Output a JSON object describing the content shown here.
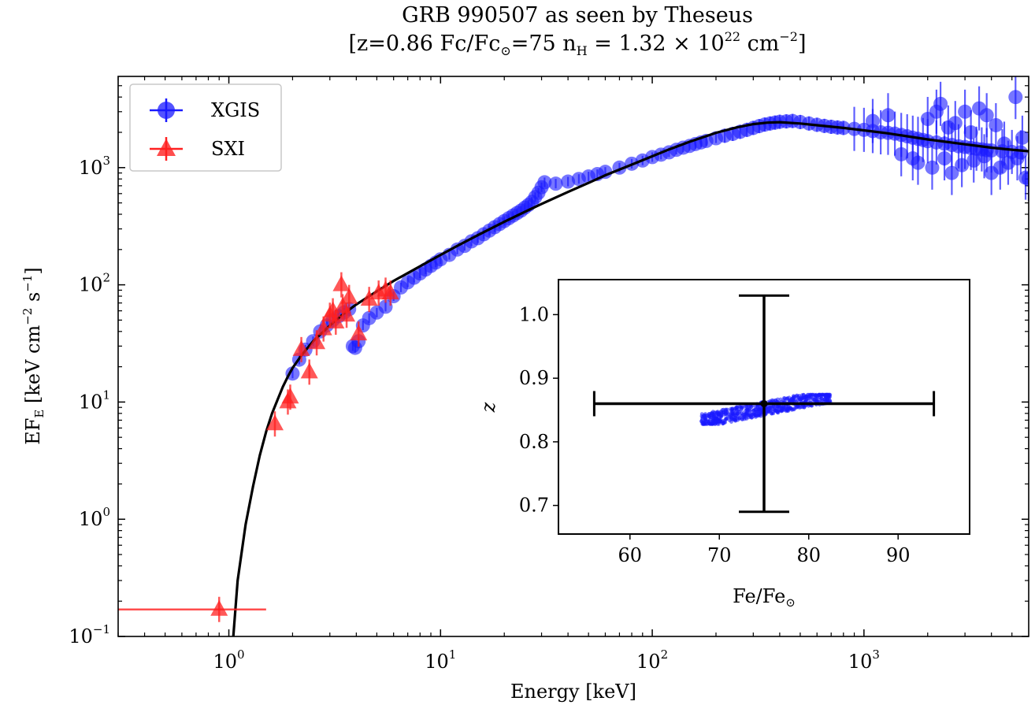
{
  "chart_data": {
    "type": "scatter",
    "title": "GRB 990507 as seen by Theseus",
    "subtitle": "[z=0.86 Fc/Fc⊙=75 nH = 1.32 × 1022 cm−2]",
    "xlabel": "Energy [keV]",
    "ylabel": "EFE [keV cm−2 s−1]",
    "xscale": "log",
    "yscale": "log",
    "xlim": [
      0.3,
      6000
    ],
    "ylim": [
      0.1,
      6000
    ],
    "x_ticks": [
      {
        "value": 1,
        "label": "10",
        "exp": "0"
      },
      {
        "value": 10,
        "label": "10",
        "exp": "1"
      },
      {
        "value": 100,
        "label": "10",
        "exp": "2"
      },
      {
        "value": 1000,
        "label": "10",
        "exp": "3"
      }
    ],
    "y_ticks": [
      {
        "value": 0.1,
        "label": "10",
        "exp": "−1"
      },
      {
        "value": 1,
        "label": "10",
        "exp": "0"
      },
      {
        "value": 10,
        "label": "10",
        "exp": "1"
      },
      {
        "value": 100,
        "label": "10",
        "exp": "2"
      },
      {
        "value": 1000,
        "label": "10",
        "exp": "3"
      }
    ],
    "legend": {
      "position": "top-left",
      "entries": [
        {
          "name": "XGIS",
          "color": "#1a1aff",
          "marker": "circle"
        },
        {
          "name": "SXI",
          "color": "#ff2020",
          "marker": "triangle"
        }
      ]
    },
    "series": [
      {
        "name": "XGIS",
        "color": "#1a1aff",
        "marker": "circle",
        "points": [
          [
            2.0,
            17.5
          ],
          [
            2.15,
            23
          ],
          [
            2.3,
            28
          ],
          [
            2.5,
            33
          ],
          [
            2.7,
            40
          ],
          [
            2.9,
            45
          ],
          [
            3.1,
            50
          ],
          [
            3.3,
            54
          ],
          [
            3.5,
            58
          ],
          [
            3.7,
            62
          ],
          [
            3.85,
            30
          ],
          [
            3.95,
            29
          ],
          [
            4.1,
            33
          ],
          [
            4.3,
            45
          ],
          [
            4.6,
            52
          ],
          [
            5.0,
            58
          ],
          [
            5.5,
            65
          ],
          [
            6.0,
            80
          ],
          [
            6.5,
            95
          ],
          [
            7,
            105
          ],
          [
            7.5,
            115
          ],
          [
            8,
            125
          ],
          [
            8.5,
            135
          ],
          [
            9,
            145
          ],
          [
            9.5,
            155
          ],
          [
            10,
            165
          ],
          [
            11,
            180
          ],
          [
            12,
            200
          ],
          [
            13,
            215
          ],
          [
            14,
            235
          ],
          [
            15,
            250
          ],
          [
            16,
            270
          ],
          [
            17,
            290
          ],
          [
            18,
            310
          ],
          [
            19,
            330
          ],
          [
            20,
            350
          ],
          [
            21,
            370
          ],
          [
            22,
            390
          ],
          [
            23,
            410
          ],
          [
            24,
            430
          ],
          [
            25,
            455
          ],
          [
            26,
            480
          ],
          [
            27,
            510
          ],
          [
            28,
            560
          ],
          [
            29,
            610
          ],
          [
            30,
            680
          ],
          [
            31,
            750
          ],
          [
            35,
            730
          ],
          [
            40,
            760
          ],
          [
            45,
            800
          ],
          [
            50,
            840
          ],
          [
            55,
            880
          ],
          [
            60,
            920
          ],
          [
            70,
            1000
          ],
          [
            80,
            1080
          ],
          [
            90,
            1150
          ],
          [
            100,
            1230
          ],
          [
            110,
            1290
          ],
          [
            120,
            1350
          ],
          [
            130,
            1420
          ],
          [
            140,
            1480
          ],
          [
            150,
            1530
          ],
          [
            160,
            1590
          ],
          [
            170,
            1640
          ],
          [
            180,
            1690
          ],
          [
            200,
            1780
          ],
          [
            220,
            1870
          ],
          [
            240,
            1940
          ],
          [
            260,
            2020
          ],
          [
            280,
            2100
          ],
          [
            300,
            2180
          ],
          [
            320,
            2260
          ],
          [
            340,
            2330
          ],
          [
            360,
            2380
          ],
          [
            380,
            2420
          ],
          [
            400,
            2460
          ],
          [
            430,
            2480
          ],
          [
            460,
            2500
          ],
          [
            500,
            2450
          ],
          [
            550,
            2380
          ],
          [
            600,
            2320
          ],
          [
            650,
            2270
          ],
          [
            700,
            2230
          ],
          [
            750,
            2200
          ],
          [
            800,
            2180
          ],
          [
            900,
            2140
          ],
          [
            1000,
            2100
          ],
          [
            1100,
            2050
          ],
          [
            1200,
            2000
          ],
          [
            1300,
            1980
          ],
          [
            1400,
            1950
          ],
          [
            1500,
            1900
          ],
          [
            1600,
            1850
          ],
          [
            1700,
            1800
          ],
          [
            1800,
            1760
          ],
          [
            1900,
            1720
          ],
          [
            2000,
            1680
          ],
          [
            2200,
            1640
          ],
          [
            2400,
            1600
          ],
          [
            2600,
            1560
          ],
          [
            2800,
            1520
          ],
          [
            3000,
            1500
          ],
          [
            3200,
            1470
          ],
          [
            3400,
            1450
          ],
          [
            3600,
            1430
          ],
          [
            3800,
            1410
          ],
          [
            4000,
            1400
          ],
          [
            4500,
            1380
          ],
          [
            5000,
            1360
          ],
          [
            5500,
            1350
          ],
          [
            1100,
            2500
          ],
          [
            1300,
            2800
          ],
          [
            1500,
            1300
          ],
          [
            1700,
            1200
          ],
          [
            2000,
            2600
          ],
          [
            2200,
            3000
          ],
          [
            2300,
            3500
          ],
          [
            2500,
            2200
          ],
          [
            2700,
            2400
          ],
          [
            3000,
            3000
          ],
          [
            3200,
            2000
          ],
          [
            3500,
            3200
          ],
          [
            3800,
            2800
          ],
          [
            4200,
            2300
          ],
          [
            4600,
            1600
          ],
          [
            5200,
            4000
          ],
          [
            5600,
            1800
          ],
          [
            5800,
            820
          ],
          [
            6000,
            800
          ],
          [
            1800,
            1100
          ],
          [
            2100,
            1000
          ],
          [
            2400,
            1200
          ],
          [
            2600,
            900
          ],
          [
            2900,
            1050
          ],
          [
            3300,
            1150
          ],
          [
            3700,
            1250
          ],
          [
            4000,
            900
          ],
          [
            4400,
            1000
          ],
          [
            4800,
            1100
          ],
          [
            5300,
            1200
          ]
        ]
      },
      {
        "name": "SXI",
        "color": "#ff2020",
        "marker": "triangle",
        "points": [
          [
            0.9,
            0.17
          ],
          [
            1.65,
            6.5
          ],
          [
            1.9,
            10
          ],
          [
            1.95,
            11
          ],
          [
            2.2,
            28
          ],
          [
            2.4,
            18
          ],
          [
            2.6,
            32
          ],
          [
            2.8,
            42
          ],
          [
            3.0,
            55
          ],
          [
            3.1,
            60
          ],
          [
            3.2,
            48
          ],
          [
            3.4,
            100
          ],
          [
            3.45,
            65
          ],
          [
            3.6,
            55
          ],
          [
            3.7,
            78
          ],
          [
            4.1,
            38
          ],
          [
            4.6,
            75
          ],
          [
            5.1,
            85
          ],
          [
            5.5,
            90
          ],
          [
            5.8,
            85
          ]
        ]
      }
    ],
    "model_curve": {
      "name": "",
      "color": "#000000",
      "x": [
        1.05,
        1.1,
        1.2,
        1.3,
        1.4,
        1.5,
        1.6,
        1.7,
        1.8,
        1.9,
        2.0,
        2.2,
        2.5,
        3,
        3.5,
        4,
        5,
        6,
        7,
        8,
        10,
        12,
        15,
        20,
        25,
        30,
        40,
        50,
        60,
        80,
        100,
        120,
        150,
        200,
        250,
        300,
        350,
        400,
        500,
        600,
        800,
        1000,
        1300,
        1600,
        2000,
        3000,
        4000,
        5000,
        6000
      ],
      "y": [
        0.1,
        0.3,
        0.9,
        1.9,
        3.5,
        5.6,
        8.0,
        10.5,
        13.5,
        16.5,
        19.5,
        25,
        33,
        45,
        57,
        68,
        88,
        108,
        126,
        144,
        180,
        215,
        265,
        345,
        420,
        490,
        620,
        740,
        860,
        1060,
        1250,
        1430,
        1660,
        1980,
        2200,
        2350,
        2420,
        2440,
        2380,
        2300,
        2180,
        2080,
        1960,
        1850,
        1740,
        1580,
        1480,
        1420,
        1380
      ]
    },
    "inset": {
      "type": "scatter",
      "xlabel": "Fe/Fe⊙",
      "ylabel": "z",
      "xlim": [
        52,
        98
      ],
      "ylim": [
        0.655,
        1.055
      ],
      "x_ticks": [
        60,
        70,
        80,
        90
      ],
      "y_ticks": [
        0.7,
        0.8,
        0.9,
        1.0
      ],
      "best_fit": {
        "x": 75,
        "y": 0.86,
        "x_err": [
          56,
          94
        ],
        "y_err": [
          0.69,
          1.03
        ]
      },
      "samples_color": "#1a1aff"
    }
  }
}
